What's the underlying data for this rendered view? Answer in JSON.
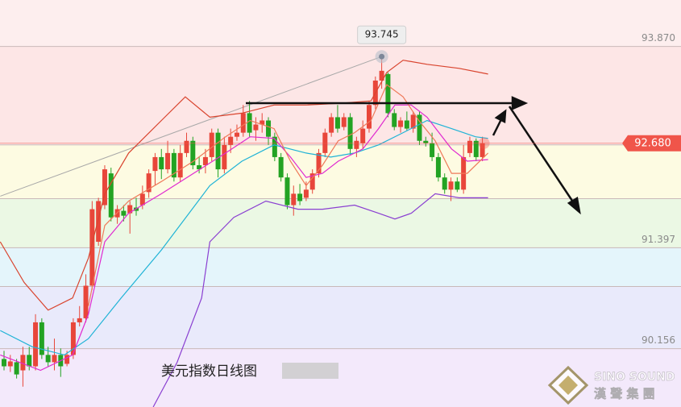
{
  "chart_data": {
    "type": "candlestick",
    "title": "美元指数日线图",
    "watermark": {
      "en": "SINO SOUND",
      "cn": "漢 聲 集 團"
    },
    "xlim": [
      -0.64,
      107.55
    ],
    "ylim": [
      89.44,
      94.44
    ],
    "yticks": [
      {
        "value": 93.87,
        "label": "93.870"
      },
      91.397,
      90.156
    ],
    "levels": [
      92.66,
      92.0,
      90.92
    ],
    "zone_colors": [
      "#fdeeee",
      "#fde6e6",
      "#fdfbe2",
      "#ebf8e4",
      "#e4f5fb",
      "#e9eafb",
      "#f3e9fb"
    ],
    "grid": true,
    "up_color": "#e8463a",
    "down_color": "#23a323",
    "open": [
      90.03,
      89.94,
      89.99,
      89.89,
      90.08,
      89.94,
      90.48,
      90.08,
      89.99,
      90.08,
      89.97,
      90.08,
      90.48,
      90.53,
      90.93,
      91.47,
      91.92,
      92.31,
      91.77,
      91.85,
      91.82,
      91.89,
      91.92,
      92.08,
      92.34,
      92.51,
      92.36,
      92.56,
      92.26,
      92.56,
      92.71,
      92.41,
      92.41,
      92.51,
      92.81,
      92.36,
      92.66,
      92.76,
      92.81,
      93.05,
      92.84,
      92.91,
      92.96,
      92.76,
      92.51,
      92.26,
      91.92,
      92.06,
      92.01,
      92.11,
      92.31,
      92.56,
      92.81,
      93.0,
      92.88,
      93.0,
      92.61,
      92.68,
      92.86,
      93.15,
      93.45,
      93.53,
      93.05,
      92.88,
      92.96,
      92.86,
      93.03,
      92.71,
      92.68,
      92.51,
      92.26,
      92.11,
      92.21,
      92.11,
      92.56,
      92.71,
      92.51
    ],
    "high": [
      90.13,
      90.08,
      90.03,
      90.18,
      90.18,
      90.58,
      90.53,
      90.18,
      90.28,
      90.16,
      90.13,
      90.53,
      90.68,
      91.07,
      91.97,
      92.01,
      92.41,
      92.38,
      91.92,
      91.92,
      91.97,
      92.01,
      92.16,
      92.36,
      92.56,
      92.61,
      92.71,
      92.61,
      92.66,
      92.81,
      92.76,
      92.51,
      92.61,
      92.86,
      92.86,
      92.76,
      92.86,
      92.91,
      93.15,
      93.2,
      93.0,
      93.05,
      93.0,
      92.81,
      92.56,
      92.31,
      92.16,
      92.18,
      92.21,
      92.36,
      92.61,
      92.86,
      93.05,
      93.15,
      93.05,
      93.05,
      92.76,
      92.96,
      93.2,
      93.5,
      93.745,
      93.55,
      93.1,
      93.0,
      93.07,
      93.07,
      93.07,
      92.76,
      92.81,
      92.56,
      92.31,
      92.26,
      92.26,
      92.66,
      92.76,
      92.74,
      92.76
    ],
    "low": [
      89.89,
      89.87,
      89.79,
      89.69,
      89.89,
      89.89,
      90.03,
      89.94,
      89.89,
      89.81,
      89.94,
      90.03,
      90.43,
      90.48,
      90.88,
      91.42,
      91.87,
      91.72,
      91.69,
      91.72,
      91.57,
      91.79,
      91.87,
      92.01,
      92.16,
      92.24,
      92.31,
      92.21,
      92.21,
      92.51,
      92.36,
      92.31,
      92.31,
      92.46,
      92.26,
      92.31,
      92.56,
      92.71,
      92.76,
      92.76,
      92.71,
      92.81,
      92.66,
      92.46,
      92.21,
      91.87,
      91.79,
      91.92,
      91.97,
      92.06,
      92.26,
      92.51,
      92.76,
      92.81,
      92.84,
      92.54,
      92.51,
      92.61,
      92.81,
      93.1,
      93.35,
      93.0,
      92.84,
      92.81,
      92.84,
      92.81,
      92.66,
      92.64,
      92.46,
      92.21,
      92.06,
      91.97,
      92.08,
      92.06,
      92.51,
      92.46,
      92.46
    ],
    "close": [
      89.94,
      90.0,
      89.84,
      90.08,
      89.94,
      90.48,
      90.08,
      89.99,
      90.08,
      89.94,
      90.08,
      90.48,
      90.53,
      90.93,
      91.87,
      91.97,
      92.36,
      91.77,
      91.87,
      91.79,
      91.92,
      91.85,
      92.06,
      92.31,
      92.51,
      92.36,
      92.56,
      92.26,
      92.56,
      92.71,
      92.41,
      92.36,
      92.51,
      92.81,
      92.36,
      92.66,
      92.76,
      92.81,
      93.05,
      92.81,
      92.91,
      92.96,
      92.76,
      92.51,
      92.26,
      91.92,
      92.06,
      91.97,
      92.11,
      92.31,
      92.56,
      92.81,
      93.0,
      92.86,
      93.0,
      92.61,
      92.71,
      92.86,
      93.15,
      93.45,
      93.57,
      93.05,
      92.88,
      92.96,
      92.86,
      93.03,
      92.71,
      92.68,
      92.51,
      92.26,
      92.11,
      92.21,
      92.11,
      92.51,
      92.71,
      92.51,
      92.68
    ],
    "lines": [
      {
        "color": "#d9442e",
        "x": [
          -0.6,
          3.2,
          7.0,
          10.9,
          13.4,
          16.0,
          19.8,
          25.0,
          28.8,
          32.7,
          37.8,
          42.9,
          48.0,
          53.1,
          58.3,
          60.8,
          63.4,
          67.2,
          72.3,
          76.9
        ],
        "values": [
          91.47,
          90.97,
          90.63,
          90.78,
          91.27,
          92.06,
          92.56,
          92.96,
          93.25,
          93.0,
          93.05,
          93.15,
          93.15,
          93.17,
          93.2,
          93.55,
          93.7,
          93.65,
          93.6,
          93.53
        ]
      },
      {
        "color": "#8a3fd1",
        "x": [
          23.7,
          27.5,
          31.4,
          32.7,
          36.5,
          41.6,
          46.7,
          50.6,
          55.7,
          59.5,
          62.1,
          64.7,
          68.5,
          72.3,
          76.9
        ],
        "values": [
          89.44,
          89.99,
          90.78,
          91.47,
          91.77,
          91.97,
          91.87,
          91.87,
          91.92,
          91.82,
          91.75,
          91.82,
          92.06,
          92.01,
          92.01
        ]
      },
      {
        "color": "#1fb3d6",
        "x": [
          -0.6,
          4.5,
          9.6,
          13.4,
          18.6,
          25.0,
          32.7,
          37.8,
          42.9,
          48.0,
          51.9,
          55.7,
          59.5,
          63.4,
          67.2,
          71.1,
          74.9,
          76.9
        ],
        "values": [
          90.38,
          90.18,
          90.08,
          90.28,
          90.78,
          91.37,
          92.16,
          92.46,
          92.66,
          92.56,
          92.51,
          92.56,
          92.66,
          92.81,
          92.96,
          92.86,
          92.76,
          92.74
        ]
      },
      {
        "color": "#e02ad0",
        "x": [
          -0.6,
          5.8,
          10.9,
          13.4,
          16.0,
          19.8,
          25.0,
          30.1,
          35.2,
          39.1,
          42.9,
          45.5,
          48.0,
          50.6,
          53.1,
          57.0,
          59.5,
          62.1,
          64.7,
          67.2,
          71.1,
          73.6,
          76.9
        ],
        "values": [
          90.08,
          89.89,
          90.08,
          90.58,
          91.47,
          91.82,
          92.06,
          92.31,
          92.56,
          92.76,
          92.74,
          92.51,
          92.26,
          92.31,
          92.46,
          92.61,
          92.86,
          93.15,
          93.15,
          93.0,
          92.61,
          92.46,
          92.48
        ]
      },
      {
        "color": "#ef7a5a",
        "x": [
          13.4,
          16.0,
          19.8,
          25.0,
          30.1,
          35.2,
          39.1,
          42.9,
          45.5,
          48.0,
          50.6,
          53.1,
          55.7,
          58.3,
          60.8,
          63.4,
          65.9,
          68.5,
          71.1,
          73.6,
          76.9
        ],
        "values": [
          90.68,
          91.67,
          91.97,
          92.21,
          92.46,
          92.76,
          92.96,
          92.86,
          92.46,
          92.16,
          92.41,
          92.71,
          92.81,
          92.96,
          93.4,
          93.25,
          92.96,
          92.71,
          92.31,
          92.31,
          92.56
        ]
      }
    ],
    "trendline": {
      "color": "#a8a8a8",
      "x": [
        -0.6,
        60
      ],
      "values": [
        92.03,
        93.745
      ]
    },
    "high_marker": {
      "x": 60,
      "value": 93.745
    },
    "price_tag": {
      "value": 92.68,
      "label": "92.680",
      "color": "#f0554a"
    }
  }
}
